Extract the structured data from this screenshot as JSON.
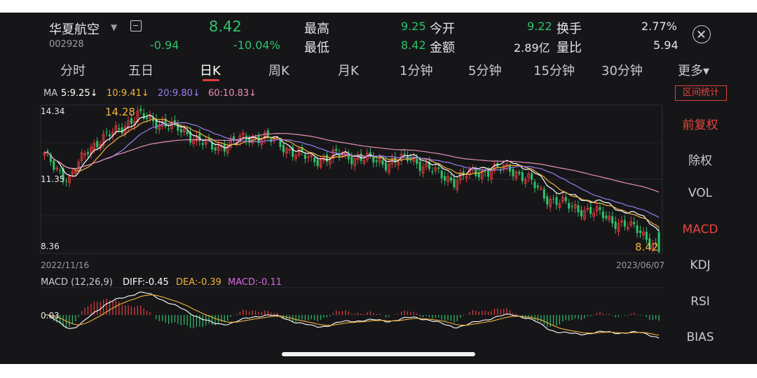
{
  "stock": {
    "name": "华夏航空",
    "code": "002928",
    "price": "8.42",
    "change": "-0.94",
    "change_pct": "-10.04%"
  },
  "quote": {
    "high_label": "最高",
    "high": "9.25",
    "low_label": "最低",
    "low": "8.42",
    "open_label": "今开",
    "open": "9.22",
    "amount_label": "金额",
    "amount": "2.89亿",
    "turnover_label": "换手",
    "turnover": "2.77%",
    "vol_ratio_label": "量比",
    "vol_ratio": "5.94"
  },
  "tabs": [
    {
      "label": "分时"
    },
    {
      "label": "五日"
    },
    {
      "label": "日K",
      "active": true
    },
    {
      "label": "周K"
    },
    {
      "label": "月K"
    },
    {
      "label": "1分钟"
    },
    {
      "label": "5分钟"
    },
    {
      "label": "15分钟"
    },
    {
      "label": "30分钟"
    },
    {
      "label": "更多▾"
    }
  ],
  "ma_legend": {
    "prefix": "MA",
    "ma5": "5:9.25↓",
    "ma10": "10:9.41↓",
    "ma20": "20:9.80↓",
    "ma60": "60:10.83↓"
  },
  "range_stats_label": "区间统计",
  "side_menu": [
    {
      "label": "前复权",
      "highlight": true
    },
    {
      "label": "除权"
    },
    {
      "label": "VOL"
    },
    {
      "label": "MACD",
      "highlight": true
    },
    {
      "label": "KDJ"
    },
    {
      "label": "RSI"
    },
    {
      "label": "BIAS"
    }
  ],
  "price_axis": {
    "top": "14.34",
    "mid": "11.35",
    "bottom": "8.36"
  },
  "date_axis": {
    "start": "2022/11/16",
    "end": "2023/06/07"
  },
  "markers": {
    "high": "14.28",
    "low": "8.42"
  },
  "macd_legend": {
    "label": "MACD (12,26,9)",
    "diff": "DIFF:-0.45",
    "dea": "DEA:-0.39",
    "macd": "MACD:-0.11",
    "axis_value": "0.03"
  },
  "colors": {
    "up": "#ea3d3d",
    "down": "#2fc26a",
    "ma5": "#ffffff",
    "ma10": "#f2b33d",
    "ma20": "#9a7ef0",
    "ma60": "#e78fb3"
  },
  "chart_data": {
    "type": "candlestick",
    "ylim": [
      8.36,
      14.34
    ],
    "x_start": "2022/11/16",
    "x_end": "2023/06/07",
    "close_anchors": [
      [
        0,
        12.3
      ],
      [
        8,
        11.3
      ],
      [
        14,
        12.6
      ],
      [
        22,
        13.2
      ],
      [
        30,
        13.9
      ],
      [
        38,
        13.6
      ],
      [
        46,
        13.2
      ],
      [
        54,
        12.6
      ],
      [
        62,
        12.9
      ],
      [
        70,
        13.1
      ],
      [
        78,
        12.6
      ],
      [
        86,
        12.1
      ],
      [
        94,
        12.3
      ],
      [
        102,
        12.2
      ],
      [
        110,
        12.0
      ],
      [
        118,
        12.2
      ],
      [
        126,
        11.6
      ],
      [
        132,
        11.3
      ],
      [
        138,
        11.6
      ],
      [
        144,
        11.7
      ],
      [
        150,
        11.8
      ],
      [
        156,
        11.3
      ],
      [
        162,
        10.6
      ],
      [
        168,
        10.3
      ],
      [
        174,
        10.1
      ],
      [
        180,
        9.9
      ],
      [
        186,
        9.5
      ],
      [
        192,
        9.3
      ],
      [
        198,
        8.42
      ]
    ],
    "ma_last": {
      "ma5": 9.25,
      "ma10": 9.41,
      "ma20": 9.8,
      "ma60": 10.83
    },
    "macd_last": {
      "diff": -0.45,
      "dea": -0.39,
      "macd": -0.11
    }
  }
}
